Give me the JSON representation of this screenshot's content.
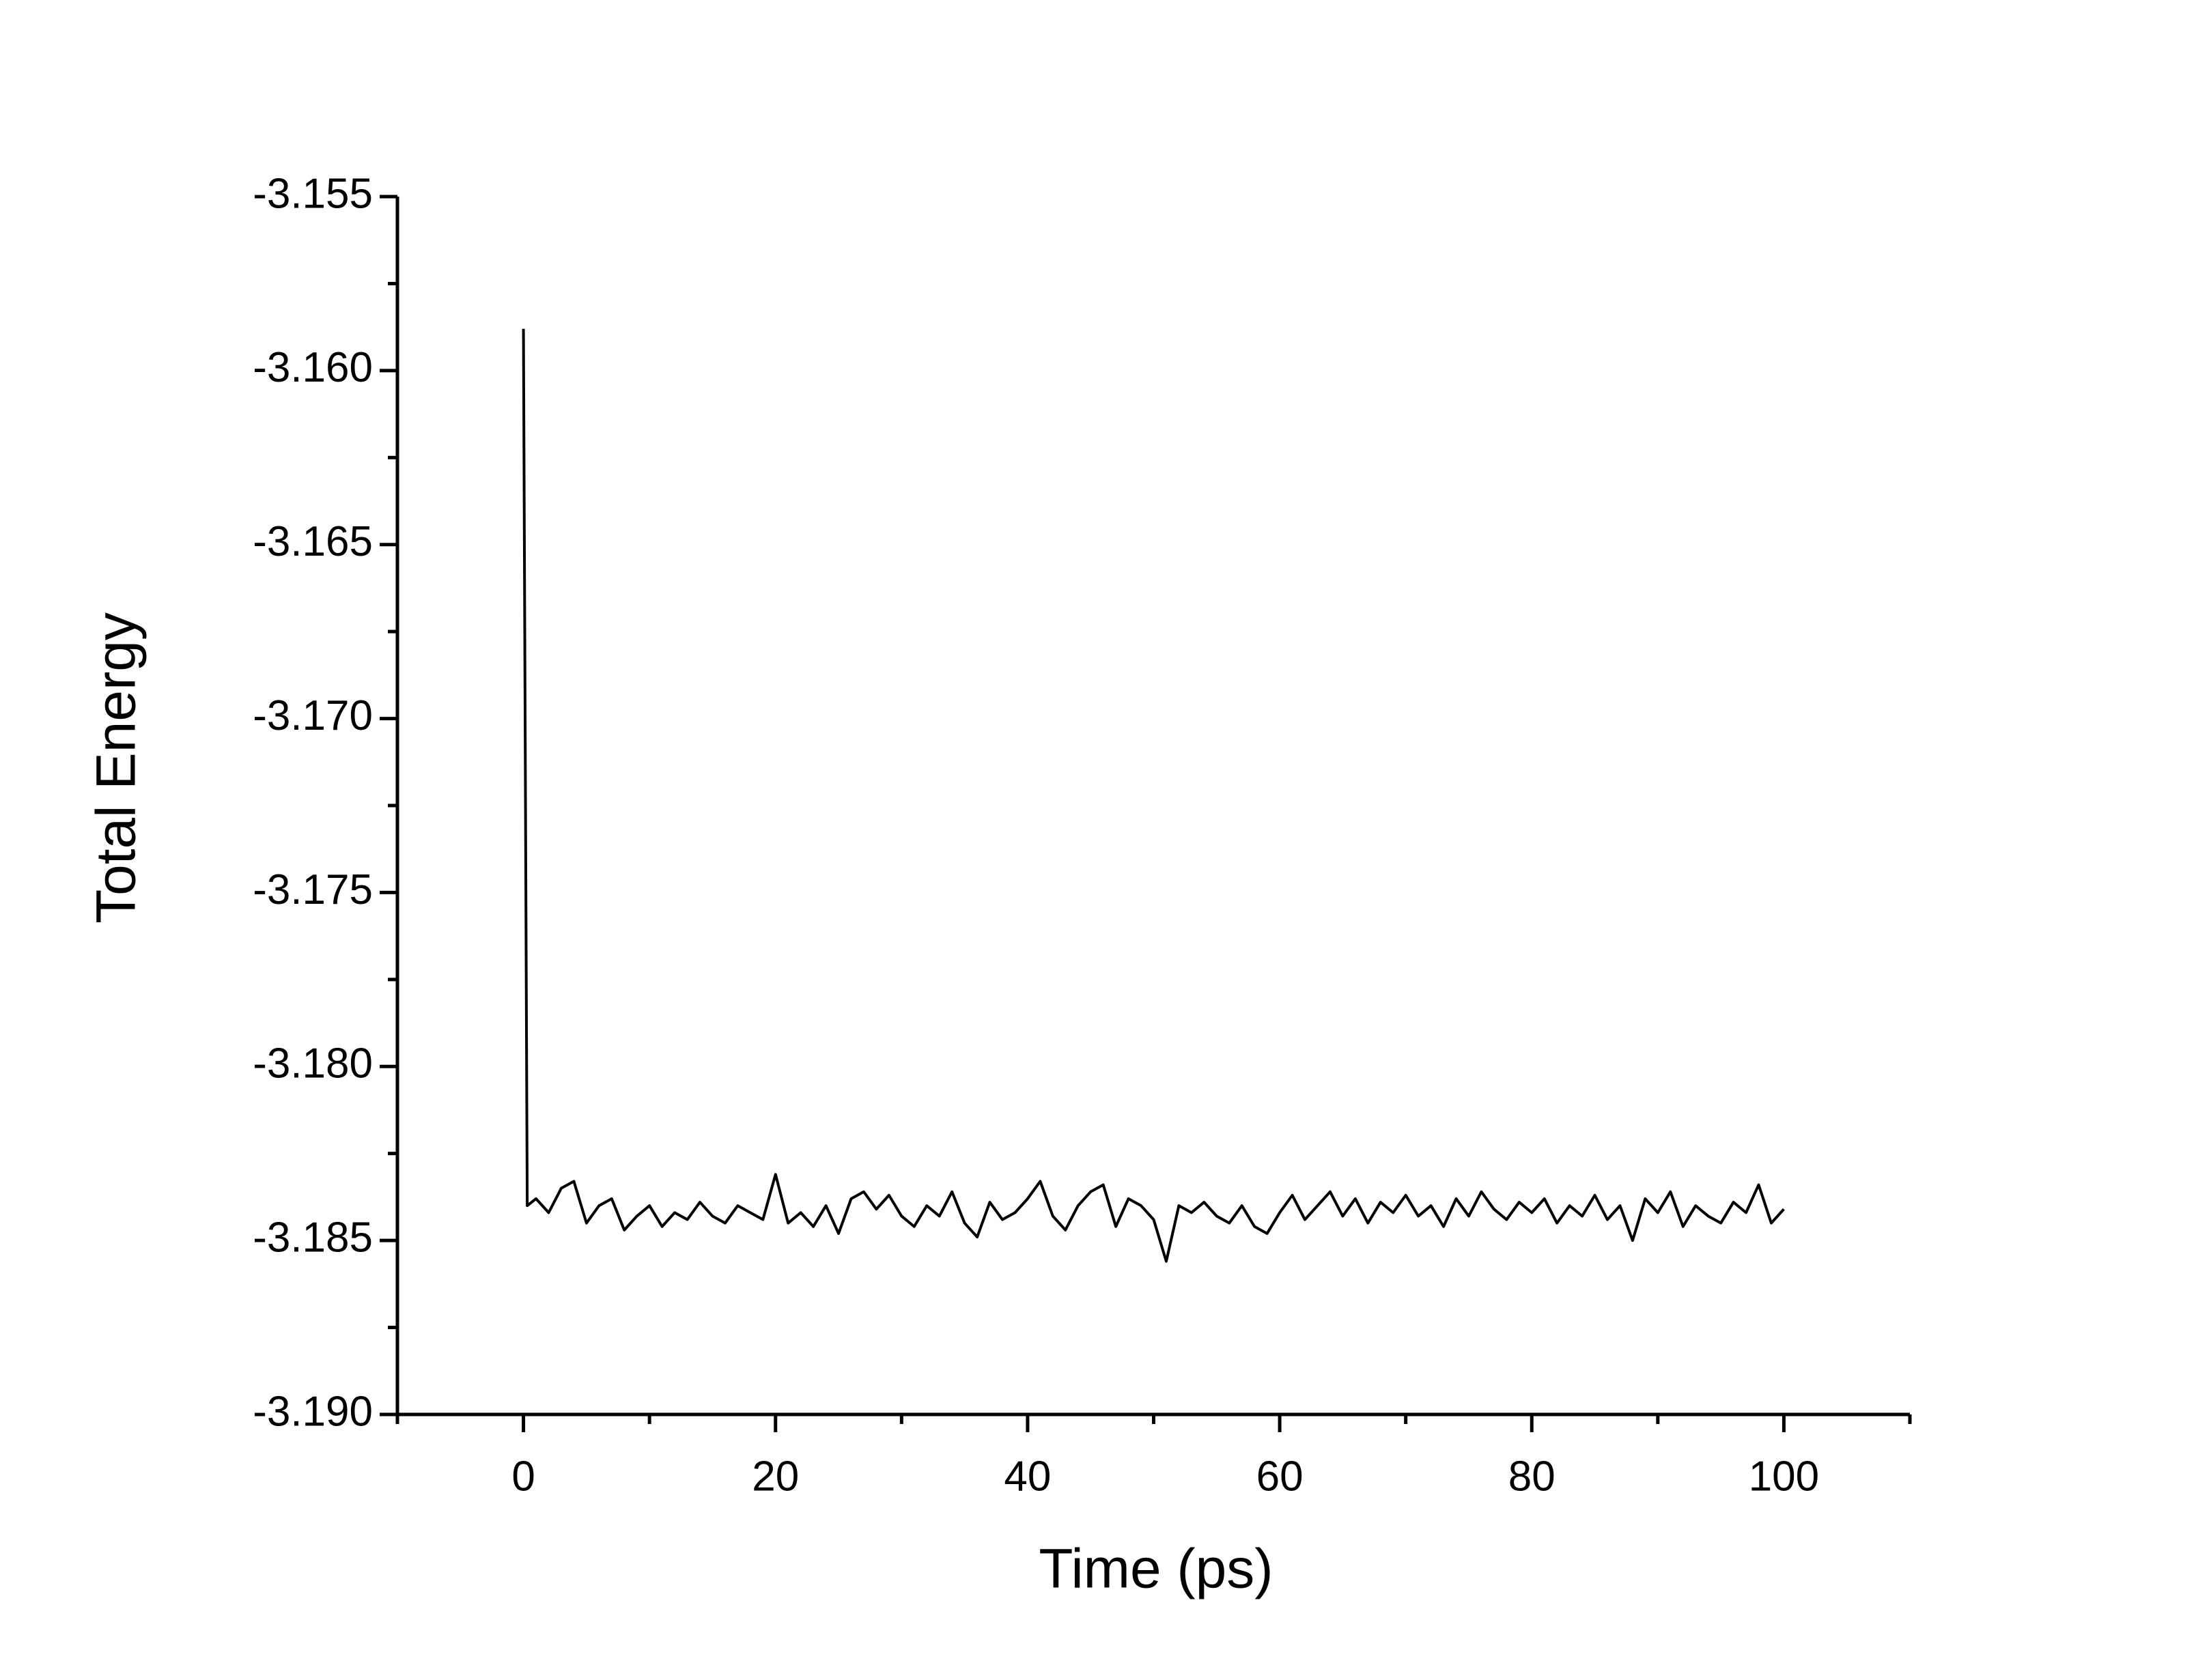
{
  "chart_data": {
    "type": "line",
    "xlabel": "Time (ps)",
    "ylabel": "Total Energy",
    "xlim": [
      -10,
      110
    ],
    "xticks": [
      0,
      20,
      40,
      60,
      80,
      100
    ],
    "xminorticks": [
      -10,
      10,
      30,
      50,
      70,
      90,
      110
    ],
    "ylim": [
      -3.19,
      -3.155
    ],
    "yticks": [
      -3.155,
      {
        "value": -3.16,
        "label": "-3.160"
      },
      -3.165,
      {
        "value": -3.17,
        "label": "-3.170"
      },
      -3.175,
      {
        "value": -3.18,
        "label": "-3.180"
      },
      -3.185,
      {
        "value": -3.19,
        "label": "-3.190"
      }
    ],
    "yminorticks": [
      -3.1575,
      -3.1625,
      -3.1675,
      -3.1725,
      -3.1775,
      -3.1825,
      -3.1875
    ],
    "grid": false,
    "x": [
      0,
      0.3,
      1,
      2,
      3,
      4,
      5,
      6,
      7,
      8,
      9,
      10,
      11,
      12,
      13,
      14,
      15,
      16,
      17,
      18,
      19,
      20,
      21,
      22,
      23,
      24,
      25,
      26,
      27,
      28,
      29,
      30,
      31,
      32,
      33,
      34,
      35,
      36,
      37,
      38,
      39,
      40,
      41,
      42,
      43,
      44,
      45,
      46,
      47,
      48,
      49,
      50,
      51,
      52,
      53,
      54,
      55,
      56,
      57,
      58,
      59,
      60,
      61,
      62,
      63,
      64,
      65,
      66,
      67,
      68,
      69,
      70,
      71,
      72,
      73,
      74,
      75,
      76,
      77,
      78,
      79,
      80,
      81,
      82,
      83,
      84,
      85,
      86,
      87,
      88,
      89,
      90,
      91,
      92,
      93,
      94,
      95,
      96,
      97,
      98,
      99,
      100
    ],
    "series": [
      {
        "color": "#000000",
        "values": [
          -3.1588,
          -3.184,
          -3.1838,
          -3.1842,
          -3.1835,
          -3.1833,
          -3.1845,
          -3.184,
          -3.1838,
          -3.1847,
          -3.1843,
          -3.184,
          -3.1846,
          -3.1842,
          -3.1844,
          -3.1839,
          -3.1843,
          -3.1845,
          -3.184,
          -3.1842,
          -3.1844,
          -3.1831,
          -3.1845,
          -3.1842,
          -3.1846,
          -3.184,
          -3.1848,
          -3.1838,
          -3.1836,
          -3.1841,
          -3.1837,
          -3.1843,
          -3.1846,
          -3.184,
          -3.1843,
          -3.1836,
          -3.1845,
          -3.1849,
          -3.1839,
          -3.1844,
          -3.1842,
          -3.1838,
          -3.1833,
          -3.1843,
          -3.1847,
          -3.184,
          -3.1836,
          -3.1834,
          -3.1846,
          -3.1838,
          -3.184,
          -3.1844,
          -3.1856,
          -3.184,
          -3.1842,
          -3.1839,
          -3.1843,
          -3.1845,
          -3.184,
          -3.1846,
          -3.1848,
          -3.1842,
          -3.1837,
          -3.1844,
          -3.184,
          -3.1836,
          -3.1843,
          -3.1838,
          -3.1845,
          -3.1839,
          -3.1842,
          -3.1837,
          -3.1843,
          -3.184,
          -3.1846,
          -3.1838,
          -3.1843,
          -3.1836,
          -3.1841,
          -3.1844,
          -3.1839,
          -3.1842,
          -3.1838,
          -3.1845,
          -3.184,
          -3.1843,
          -3.1837,
          -3.1844,
          -3.184,
          -3.185,
          -3.1838,
          -3.1842,
          -3.1836,
          -3.1846,
          -3.184,
          -3.1843,
          -3.1845,
          -3.1839,
          -3.1842,
          -3.1834,
          -3.1845,
          -3.1841
        ]
      }
    ]
  }
}
